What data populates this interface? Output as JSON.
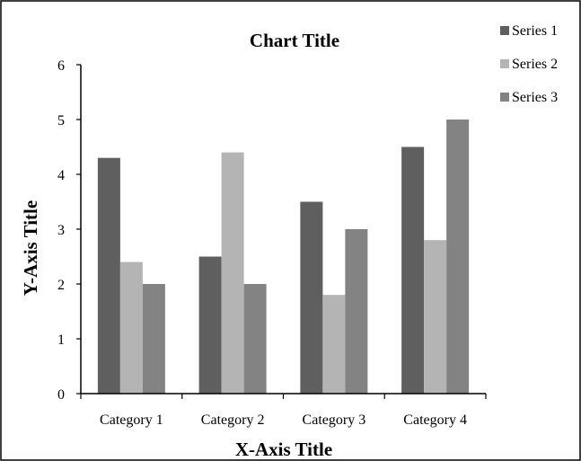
{
  "chart_data": {
    "type": "bar",
    "title": "Chart Title",
    "xlabel": "X-Axis Title",
    "ylabel": "Y-Axis Title",
    "categories": [
      "Category 1",
      "Category 2",
      "Category 3",
      "Category 4"
    ],
    "series": [
      {
        "name": "Series 1",
        "values": [
          4.3,
          2.5,
          3.5,
          4.5
        ],
        "color": "#5f5f5f"
      },
      {
        "name": "Series 2",
        "values": [
          2.4,
          4.4,
          1.8,
          2.8
        ],
        "color": "#b4b4b4"
      },
      {
        "name": "Series 3",
        "values": [
          2.0,
          2.0,
          3.0,
          5.0
        ],
        "color": "#838383"
      }
    ],
    "ylim": [
      0,
      6
    ],
    "yticks": [
      "0",
      "1",
      "2",
      "3",
      "4",
      "5",
      "6"
    ],
    "grid": false,
    "legend": "top-right"
  }
}
